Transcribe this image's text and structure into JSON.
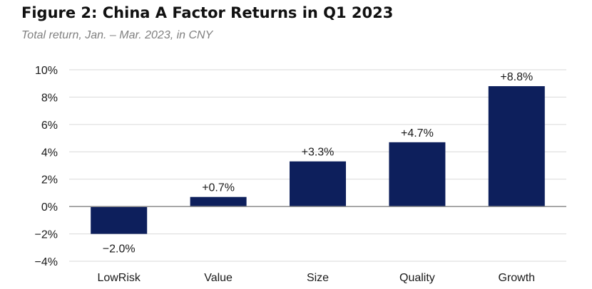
{
  "title": "Figure 2: China A Factor Returns in Q1 2023",
  "subtitle": "Total return, Jan. – Mar. 2023, in CNY",
  "colors": {
    "bar": "#0d1f5c",
    "grid": "#d9d9d9",
    "axis": "#8c8c8c"
  },
  "chart_data": {
    "type": "bar",
    "title": "Figure 2: China A Factor Returns in Q1 2023",
    "subtitle": "Total return, Jan. – Mar. 2023, in CNY",
    "categories": [
      "LowRisk",
      "Value",
      "Size",
      "Quality",
      "Growth"
    ],
    "values": [
      -2.0,
      0.7,
      3.3,
      4.7,
      8.8
    ],
    "data_labels": [
      "−2.0%",
      "+0.7%",
      "+3.3%",
      "+4.7%",
      "+8.8%"
    ],
    "ylim": [
      -4,
      10
    ],
    "yticks": [
      10,
      8,
      6,
      4,
      2,
      0,
      -2,
      -4
    ],
    "ytick_labels": [
      "10%",
      "8%",
      "6%",
      "4%",
      "2%",
      "0%",
      "−2%",
      "−4%"
    ],
    "xlabel": "",
    "ylabel": "",
    "grid": true,
    "legend": "none"
  }
}
